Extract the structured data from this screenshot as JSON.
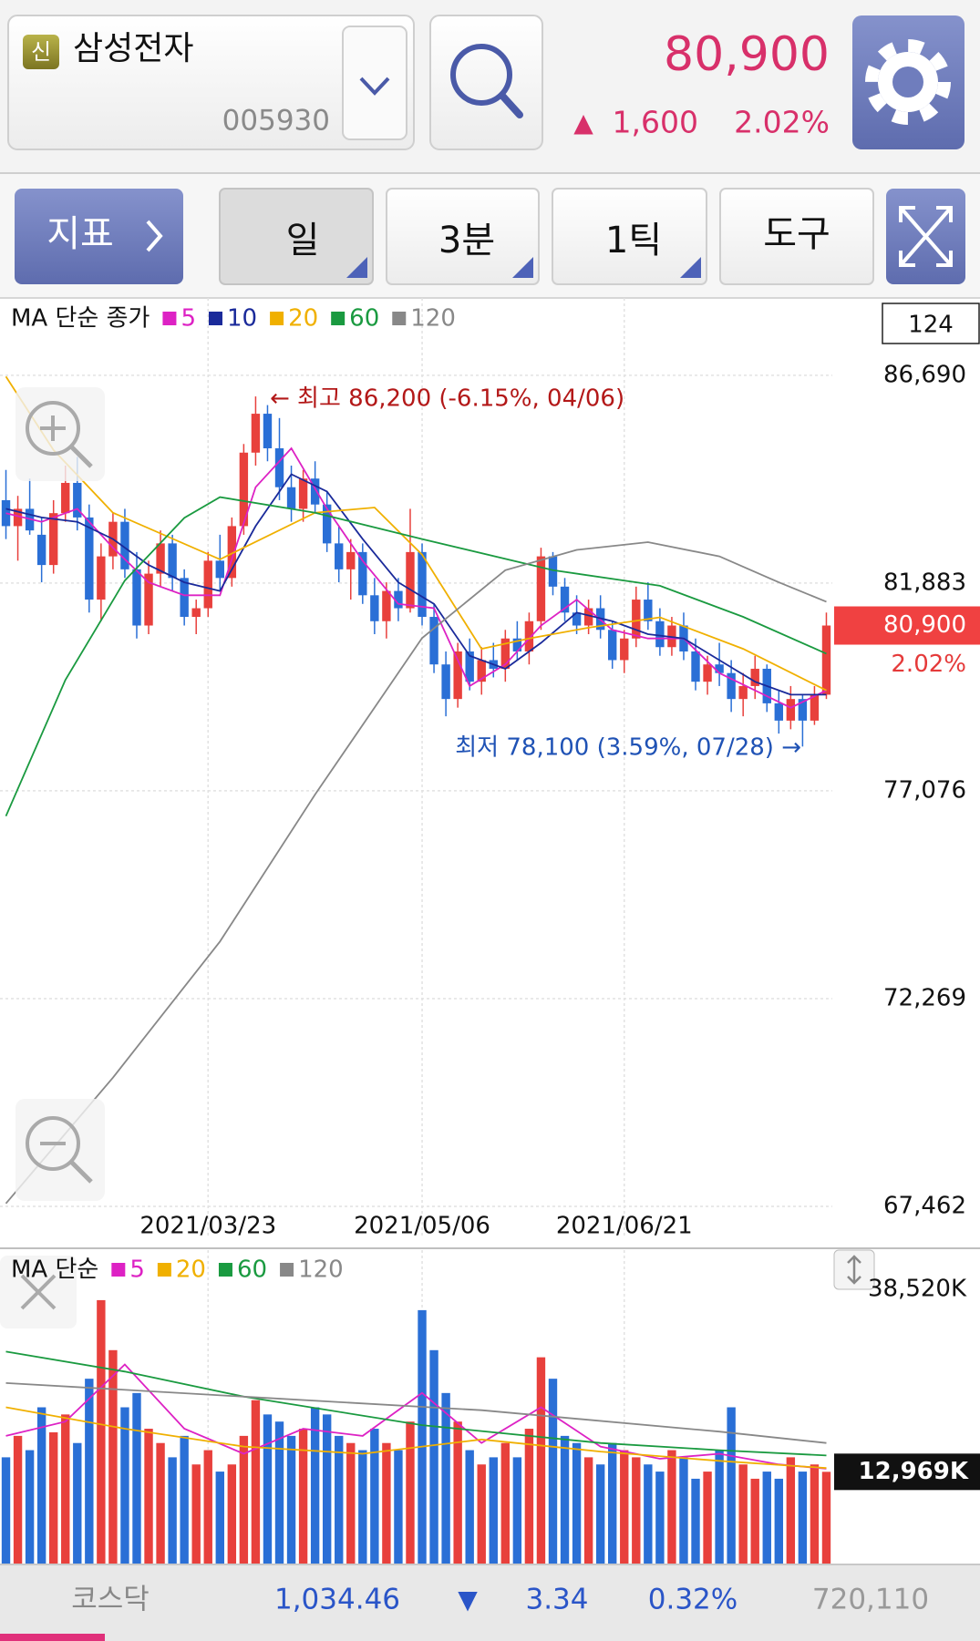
{
  "header": {
    "badge": "신",
    "name": "삼성전자",
    "code": "005930",
    "price": "80,900",
    "arrow": "▲",
    "change": "1,600",
    "change_pct": "2.02%"
  },
  "toolbar": {
    "buttons": [
      "지표",
      "일",
      "3분",
      "1틱",
      "도구"
    ]
  },
  "chart_controls": {
    "count": "124"
  },
  "chart_data": [
    {
      "type": "candlestick",
      "legend_title": "MA 단순 종가",
      "categories": [
        null,
        null,
        null,
        null,
        null,
        null,
        null,
        null,
        null,
        null,
        null,
        null,
        null,
        null,
        null,
        null,
        null,
        "2021/03/23",
        null,
        null,
        null,
        null,
        null,
        null,
        null,
        null,
        null,
        null,
        null,
        null,
        null,
        null,
        null,
        null,
        null,
        "2021/05/06",
        null,
        null,
        null,
        null,
        null,
        null,
        null,
        null,
        null,
        null,
        null,
        null,
        null,
        null,
        null,
        null,
        "2021/06/21",
        null,
        null,
        null,
        null,
        null,
        null,
        null,
        null,
        null,
        null,
        null,
        null,
        null,
        null,
        null,
        null,
        null
      ],
      "ohlc": [
        [
          83800,
          84500,
          82900,
          83200
        ],
        [
          83200,
          83900,
          82400,
          83600
        ],
        [
          83600,
          84300,
          83000,
          83100
        ],
        [
          83000,
          83400,
          81900,
          82300
        ],
        [
          82300,
          83800,
          82100,
          83500
        ],
        [
          83500,
          84600,
          83300,
          84200
        ],
        [
          84200,
          84800,
          83100,
          83400
        ],
        [
          83400,
          83700,
          81200,
          81500
        ],
        [
          81500,
          82800,
          81000,
          82500
        ],
        [
          82500,
          83500,
          82200,
          83300
        ],
        [
          83300,
          83600,
          82000,
          82200
        ],
        [
          82200,
          82600,
          80600,
          80900
        ],
        [
          80900,
          82400,
          80700,
          82100
        ],
        [
          82100,
          83100,
          81800,
          82800
        ],
        [
          82800,
          83000,
          81700,
          82000
        ],
        [
          82000,
          82200,
          80900,
          81100
        ],
        [
          81100,
          81500,
          80700,
          81300
        ],
        [
          81300,
          82600,
          81100,
          82400
        ],
        [
          82400,
          83000,
          81700,
          82000
        ],
        [
          82000,
          83400,
          81800,
          83200
        ],
        [
          83200,
          85100,
          83000,
          84900
        ],
        [
          84900,
          86200,
          84600,
          85800
        ],
        [
          85800,
          86000,
          84700,
          85000
        ],
        [
          85000,
          85700,
          83800,
          84100
        ],
        [
          84100,
          84600,
          83300,
          83600
        ],
        [
          83600,
          84500,
          83300,
          84300
        ],
        [
          84300,
          84700,
          83500,
          83700
        ],
        [
          83700,
          84000,
          82600,
          82800
        ],
        [
          82800,
          83200,
          81900,
          82200
        ],
        [
          82200,
          82900,
          81500,
          82600
        ],
        [
          82600,
          82800,
          81400,
          81600
        ],
        [
          81600,
          82000,
          80700,
          81000
        ],
        [
          81000,
          81900,
          80600,
          81700
        ],
        [
          81700,
          82000,
          81000,
          81300
        ],
        [
          81300,
          83600,
          81200,
          82600
        ],
        [
          82600,
          82800,
          80900,
          81100
        ],
        [
          81100,
          81400,
          79800,
          80000
        ],
        [
          80000,
          80300,
          78800,
          79200
        ],
        [
          79200,
          80500,
          79000,
          80300
        ],
        [
          80300,
          80600,
          79400,
          79600
        ],
        [
          79600,
          80400,
          79300,
          80100
        ],
        [
          80100,
          80500,
          79700,
          79900
        ],
        [
          79900,
          80800,
          79600,
          80600
        ],
        [
          80600,
          81000,
          80100,
          80300
        ],
        [
          80300,
          81200,
          80000,
          81000
        ],
        [
          81000,
          82700,
          80800,
          82500
        ],
        [
          82500,
          82600,
          81600,
          81800
        ],
        [
          81800,
          82000,
          81000,
          81200
        ],
        [
          81200,
          81600,
          80700,
          80900
        ],
        [
          80900,
          81500,
          80700,
          81300
        ],
        [
          81300,
          81600,
          80600,
          80800
        ],
        [
          80800,
          81000,
          79900,
          80100
        ],
        [
          80100,
          80800,
          79800,
          80600
        ],
        [
          80600,
          81800,
          80400,
          81500
        ],
        [
          81500,
          81900,
          80800,
          81000
        ],
        [
          81000,
          81300,
          80200,
          80400
        ],
        [
          80400,
          81100,
          80200,
          80900
        ],
        [
          80900,
          81200,
          80100,
          80300
        ],
        [
          80300,
          80600,
          79400,
          79600
        ],
        [
          79600,
          80200,
          79300,
          80000
        ],
        [
          80000,
          80500,
          79500,
          79800
        ],
        [
          79800,
          80100,
          78900,
          79200
        ],
        [
          79200,
          79800,
          78800,
          79500
        ],
        [
          79500,
          80200,
          79200,
          79900
        ],
        [
          79900,
          80000,
          78900,
          79100
        ],
        [
          79100,
          79400,
          78400,
          78700
        ],
        [
          78700,
          79500,
          78500,
          79200
        ],
        [
          79200,
          79300,
          78100,
          78700
        ],
        [
          78700,
          79500,
          78600,
          79300
        ],
        [
          79300,
          81200,
          79200,
          80900
        ]
      ],
      "up_color": "#e8403c",
      "down_color": "#2a6fd6",
      "series": [
        {
          "name": "5",
          "color": "#dd22c4",
          "x": [
            0,
            3,
            6,
            9,
            12,
            15,
            18,
            21,
            24,
            27,
            30,
            33,
            36,
            39,
            42,
            45,
            48,
            51,
            54,
            57,
            60,
            63,
            66,
            69
          ],
          "values": [
            83500,
            83300,
            83600,
            82700,
            81900,
            81600,
            81600,
            84100,
            85000,
            83600,
            82400,
            81400,
            81300,
            79500,
            80000,
            80900,
            81500,
            80800,
            80600,
            80600,
            79800,
            79400,
            79000,
            79400
          ]
        },
        {
          "name": "10",
          "color": "#1a2a9a",
          "x": [
            0,
            3,
            6,
            9,
            12,
            15,
            18,
            21,
            24,
            27,
            30,
            33,
            36,
            39,
            42,
            45,
            48,
            51,
            54,
            57,
            60,
            63,
            66,
            69
          ],
          "values": [
            83600,
            83400,
            83300,
            82900,
            82300,
            81900,
            81700,
            83200,
            84400,
            84000,
            82900,
            81900,
            81400,
            80200,
            79900,
            80500,
            81200,
            81000,
            80700,
            80600,
            80100,
            79600,
            79300,
            79300
          ]
        },
        {
          "name": "20",
          "color": "#f0b000",
          "x": [
            0,
            4,
            9,
            18,
            26,
            31,
            35,
            40,
            44,
            49,
            55,
            62,
            69
          ],
          "values": [
            86660,
            84960,
            83510,
            82430,
            83510,
            83630,
            82540,
            80360,
            80600,
            80850,
            81090,
            80360,
            79400
          ]
        },
        {
          "name": "60",
          "color": "#1a9a40",
          "x": [
            0,
            5,
            10,
            15,
            18,
            26,
            35,
            46,
            55,
            62,
            69
          ],
          "values": [
            76490,
            79640,
            81940,
            83390,
            83870,
            83510,
            82900,
            82180,
            81820,
            81100,
            80250
          ]
        },
        {
          "name": "120",
          "color": "#888888",
          "x": [
            0,
            9,
            18,
            26,
            35,
            42,
            48,
            54,
            60,
            65,
            69
          ],
          "values": [
            67530,
            70440,
            73590,
            76990,
            80610,
            82180,
            82650,
            82830,
            82500,
            81900,
            81450
          ]
        }
      ],
      "ylim": [
        67230,
        88310
      ],
      "yticks": [
        {
          "value": 86690,
          "label": "86,690"
        },
        {
          "value": 81883,
          "label": "81,883"
        },
        {
          "value": 77076,
          "label": "77,076"
        },
        {
          "value": 72269,
          "label": "72,269"
        },
        {
          "value": 67462,
          "label": "67,462"
        }
      ],
      "grid": true,
      "annotations": [
        "← 최고 86,200 (-6.15%, 04/06)",
        "최저 78,100 (3.59%, 07/28) →"
      ]
    },
    {
      "type": "bar",
      "legend_title": "MA 단순",
      "values": [
        15000,
        18000,
        16000,
        22000,
        18500,
        21000,
        17000,
        26000,
        37000,
        30000,
        22000,
        24000,
        19000,
        17000,
        15000,
        18000,
        14000,
        16000,
        13000,
        14000,
        18000,
        23000,
        21000,
        20000,
        18000,
        19000,
        22000,
        21000,
        18000,
        17000,
        16000,
        19000,
        17000,
        16000,
        20000,
        35600,
        30000,
        24000,
        20000,
        16000,
        14000,
        15000,
        17000,
        15000,
        19000,
        29000,
        26000,
        18000,
        17000,
        15000,
        14000,
        17000,
        16000,
        15000,
        14000,
        13000,
        16000,
        15000,
        12000,
        13000,
        16000,
        22000,
        14000,
        12000,
        13000,
        12000,
        15000,
        13000,
        14000,
        12969
      ],
      "ylim": [
        0,
        38520
      ],
      "yticks": [
        {
          "value": 38520,
          "label": "38,520K"
        }
      ],
      "last_label": {
        "value": 12969,
        "label": "12,969K"
      },
      "series": [
        {
          "name": "5",
          "color": "#dd22c4",
          "x": [
            0,
            5,
            10,
            15,
            20,
            25,
            30,
            35,
            40,
            45,
            50,
            55,
            60,
            65,
            69
          ],
          "values": [
            18000,
            20000,
            28000,
            19000,
            15500,
            19000,
            18000,
            24000,
            17000,
            22000,
            16500,
            14800,
            15500,
            14000,
            13400
          ]
        },
        {
          "name": "20",
          "color": "#f0b000",
          "x": [
            0,
            10,
            20,
            30,
            40,
            50,
            60,
            69
          ],
          "values": [
            22000,
            19000,
            16500,
            15500,
            17500,
            15800,
            14500,
            13500
          ]
        },
        {
          "name": "60",
          "color": "#1a9a40",
          "x": [
            0,
            10,
            20,
            35,
            50,
            60,
            69
          ],
          "values": [
            29800,
            27000,
            23500,
            19500,
            17000,
            16000,
            15260
          ]
        },
        {
          "name": "120",
          "color": "#888888",
          "x": [
            0,
            20,
            40,
            60,
            69
          ],
          "values": [
            25400,
            23500,
            21600,
            18600,
            17000
          ]
        }
      ]
    }
  ],
  "footer": {
    "index_name": "코스닥",
    "index_value": "1,034.46",
    "arrow": "▼",
    "change": "3.34",
    "change_pct": "0.32%",
    "volume": "720,110"
  }
}
